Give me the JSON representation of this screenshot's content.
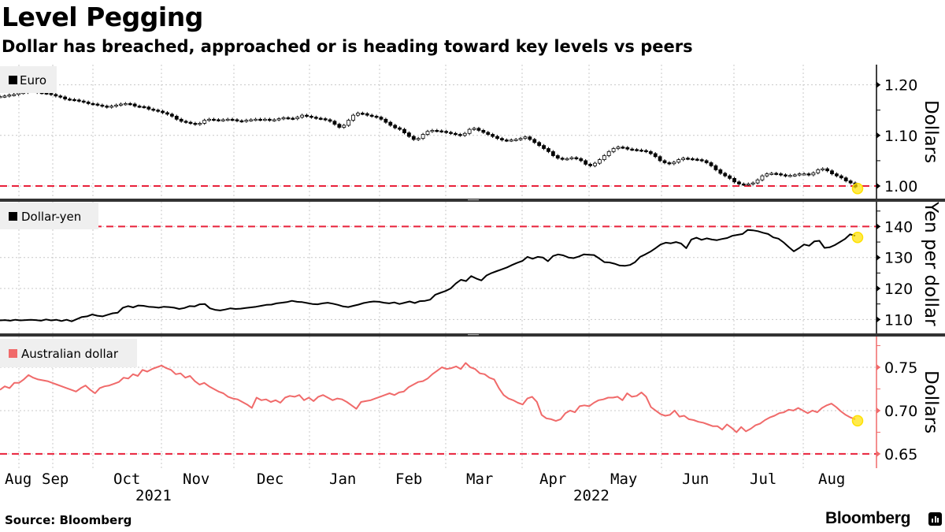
{
  "header": {
    "title": "Level Pegging",
    "subtitle": "Dollar has breached, approached or is heading toward key levels vs peers"
  },
  "footer": {
    "source": "Source: Bloomberg",
    "brand": "Bloomberg",
    "brand_icon": "bloomberg-chart-icon"
  },
  "colors": {
    "euro": "#000000",
    "yen": "#000000",
    "aud": "#f06a6a",
    "threshold": "#e8213a",
    "highlight": "#ffe100",
    "grid": "#c8c8c8",
    "legend_bg": "#efefef",
    "separator": "#333333"
  },
  "chart_data": [
    {
      "type": "candlestick",
      "legend": "Euro",
      "ylabel": "Dollars",
      "ylim": [
        0.975,
        1.24
      ],
      "yticks": [
        1.2,
        1.1,
        1.0
      ],
      "ytick_labels": [
        "1.20",
        "1.10",
        "1.00"
      ],
      "threshold": 1.0,
      "x_start": "2021-08",
      "values": [
        1.177,
        1.178,
        1.18,
        1.181,
        1.184,
        1.185,
        1.188,
        1.187,
        1.185,
        1.184,
        1.183,
        1.181,
        1.178,
        1.176,
        1.172,
        1.171,
        1.17,
        1.168,
        1.166,
        1.163,
        1.162,
        1.16,
        1.158,
        1.156,
        1.158,
        1.16,
        1.162,
        1.163,
        1.162,
        1.158,
        1.157,
        1.156,
        1.152,
        1.15,
        1.148,
        1.145,
        1.142,
        1.138,
        1.132,
        1.128,
        1.126,
        1.124,
        1.122,
        1.124,
        1.13,
        1.132,
        1.131,
        1.13,
        1.131,
        1.132,
        1.131,
        1.129,
        1.128,
        1.13,
        1.131,
        1.132,
        1.131,
        1.132,
        1.13,
        1.131,
        1.133,
        1.135,
        1.134,
        1.133,
        1.136,
        1.14,
        1.138,
        1.136,
        1.134,
        1.133,
        1.131,
        1.128,
        1.122,
        1.116,
        1.12,
        1.13,
        1.14,
        1.144,
        1.143,
        1.14,
        1.138,
        1.136,
        1.132,
        1.126,
        1.12,
        1.115,
        1.112,
        1.105,
        1.098,
        1.092,
        1.094,
        1.102,
        1.108,
        1.11,
        1.109,
        1.108,
        1.106,
        1.104,
        1.102,
        1.1,
        1.104,
        1.112,
        1.114,
        1.11,
        1.106,
        1.102,
        1.098,
        1.094,
        1.091,
        1.09,
        1.091,
        1.092,
        1.094,
        1.097,
        1.092,
        1.086,
        1.08,
        1.074,
        1.068,
        1.06,
        1.055,
        1.053,
        1.054,
        1.056,
        1.054,
        1.05,
        1.043,
        1.04,
        1.045,
        1.052,
        1.06,
        1.068,
        1.074,
        1.077,
        1.076,
        1.073,
        1.072,
        1.071,
        1.07,
        1.068,
        1.064,
        1.058,
        1.05,
        1.046,
        1.044,
        1.047,
        1.052,
        1.055,
        1.054,
        1.053,
        1.052,
        1.05,
        1.046,
        1.04,
        1.032,
        1.025,
        1.02,
        1.015,
        1.008,
        1.004,
        1.003,
        1.004,
        1.006,
        1.012,
        1.02,
        1.024,
        1.025,
        1.024,
        1.022,
        1.02,
        1.021,
        1.022,
        1.024,
        1.024,
        1.022,
        1.026,
        1.032,
        1.034,
        1.03,
        1.024,
        1.02,
        1.016,
        1.01,
        1.006,
        0.998
      ]
    },
    {
      "type": "line",
      "legend": "Dollar-yen",
      "ylabel": "Yen per dollar",
      "ylim": [
        105.5,
        148
      ],
      "yticks": [
        140,
        130,
        120,
        110
      ],
      "ytick_labels": [
        "140",
        "130",
        "120",
        "110"
      ],
      "threshold": 140,
      "x_start": "2021-08",
      "values": [
        109.7,
        109.8,
        109.6,
        109.9,
        109.7,
        109.8,
        109.9,
        109.8,
        109.6,
        110.0,
        109.7,
        109.9,
        109.5,
        109.9,
        109.4,
        110.1,
        110.8,
        111.0,
        111.6,
        111.2,
        111.0,
        111.5,
        112.0,
        112.2,
        113.8,
        114.3,
        113.9,
        114.5,
        114.4,
        114.1,
        114.0,
        113.8,
        114.1,
        114.0,
        113.8,
        113.4,
        113.7,
        114.3,
        114.2,
        114.9,
        115.0,
        113.6,
        113.1,
        112.9,
        113.2,
        113.6,
        113.4,
        113.5,
        113.7,
        113.9,
        114.1,
        114.4,
        114.7,
        114.8,
        115.2,
        115.4,
        115.6,
        116.0,
        115.7,
        115.6,
        115.3,
        115.0,
        114.9,
        115.2,
        115.4,
        115.1,
        114.7,
        114.2,
        114.0,
        114.4,
        114.8,
        115.3,
        115.6,
        115.8,
        115.7,
        115.4,
        115.2,
        115.5,
        115.0,
        115.4,
        115.8,
        115.3,
        115.9,
        116.0,
        116.4,
        118.0,
        118.6,
        119.2,
        120.0,
        121.6,
        122.8,
        122.4,
        124.0,
        123.2,
        122.6,
        124.2,
        125.0,
        125.6,
        126.2,
        126.8,
        127.6,
        128.3,
        128.9,
        130.2,
        129.6,
        130.2,
        130.0,
        128.8,
        130.5,
        131.0,
        130.7,
        130.0,
        129.8,
        130.3,
        131.0,
        130.9,
        130.8,
        129.7,
        128.5,
        128.4,
        128.0,
        127.4,
        127.3,
        127.6,
        128.5,
        130.2,
        131.0,
        131.9,
        133.0,
        134.2,
        134.8,
        134.6,
        135.0,
        134.5,
        133.0,
        135.8,
        136.4,
        135.7,
        136.2,
        135.8,
        135.6,
        136.0,
        136.3,
        137.0,
        137.3,
        137.6,
        138.9,
        138.8,
        138.5,
        138.0,
        137.6,
        136.5,
        136.1,
        134.9,
        133.4,
        132.0,
        133.0,
        134.2,
        133.8,
        135.2,
        135.4,
        133.1,
        133.3,
        134.0,
        135.0,
        136.0,
        137.5,
        137.0
      ]
    },
    {
      "type": "line",
      "legend": "Australian dollar",
      "ylabel": "Dollars",
      "ylim": [
        0.6335,
        0.7855
      ],
      "yticks": [
        0.75,
        0.7,
        0.65
      ],
      "ytick_labels": [
        "0.75",
        "0.70",
        "0.65"
      ],
      "threshold": 0.65,
      "x_start": "2021-08",
      "values": [
        0.724,
        0.728,
        0.726,
        0.732,
        0.732,
        0.736,
        0.741,
        0.738,
        0.736,
        0.735,
        0.734,
        0.732,
        0.73,
        0.728,
        0.726,
        0.724,
        0.722,
        0.726,
        0.729,
        0.724,
        0.72,
        0.726,
        0.728,
        0.729,
        0.731,
        0.733,
        0.738,
        0.737,
        0.742,
        0.74,
        0.747,
        0.745,
        0.748,
        0.75,
        0.752,
        0.749,
        0.747,
        0.742,
        0.743,
        0.738,
        0.74,
        0.734,
        0.73,
        0.732,
        0.728,
        0.725,
        0.722,
        0.72,
        0.716,
        0.714,
        0.713,
        0.71,
        0.707,
        0.703,
        0.715,
        0.712,
        0.713,
        0.71,
        0.712,
        0.709,
        0.715,
        0.717,
        0.716,
        0.718,
        0.712,
        0.715,
        0.711,
        0.716,
        0.718,
        0.715,
        0.712,
        0.714,
        0.713,
        0.71,
        0.706,
        0.702,
        0.71,
        0.711,
        0.712,
        0.714,
        0.716,
        0.718,
        0.72,
        0.718,
        0.721,
        0.722,
        0.727,
        0.73,
        0.733,
        0.734,
        0.737,
        0.742,
        0.746,
        0.75,
        0.748,
        0.749,
        0.751,
        0.748,
        0.755,
        0.75,
        0.748,
        0.743,
        0.742,
        0.738,
        0.736,
        0.726,
        0.718,
        0.714,
        0.712,
        0.709,
        0.707,
        0.714,
        0.716,
        0.71,
        0.695,
        0.691,
        0.69,
        0.688,
        0.69,
        0.697,
        0.7,
        0.698,
        0.705,
        0.706,
        0.705,
        0.709,
        0.712,
        0.713,
        0.715,
        0.715,
        0.716,
        0.712,
        0.72,
        0.716,
        0.717,
        0.721,
        0.716,
        0.704,
        0.7,
        0.696,
        0.694,
        0.695,
        0.7,
        0.693,
        0.694,
        0.69,
        0.689,
        0.687,
        0.686,
        0.684,
        0.682,
        0.682,
        0.678,
        0.684,
        0.68,
        0.675,
        0.681,
        0.676,
        0.679,
        0.683,
        0.685,
        0.689,
        0.692,
        0.694,
        0.697,
        0.698,
        0.701,
        0.7,
        0.703,
        0.7,
        0.697,
        0.7,
        0.698,
        0.703,
        0.706,
        0.708,
        0.704,
        0.699,
        0.695,
        0.692,
        0.69
      ]
    }
  ],
  "x_axis": {
    "months": [
      "Aug",
      "Sep",
      "Oct",
      "Nov",
      "Dec",
      "Jan",
      "Feb",
      "Mar",
      "Apr",
      "May",
      "Jun",
      "Jul",
      "Aug"
    ],
    "years": [
      "2021",
      "2022"
    ]
  }
}
